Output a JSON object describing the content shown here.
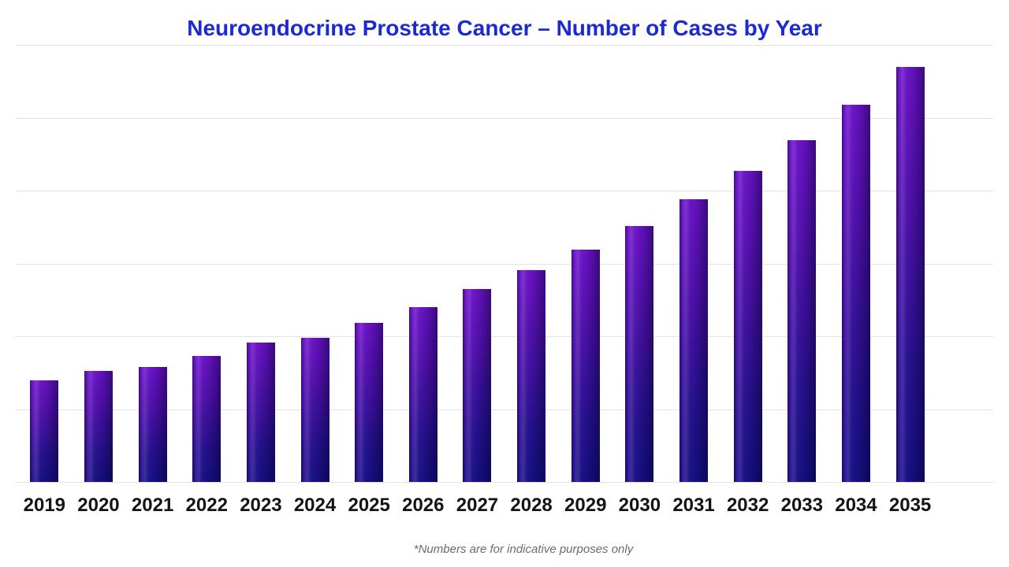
{
  "page": {
    "background": "#ffffff"
  },
  "chart_data": {
    "type": "bar",
    "title": "Neuroendocrine Prostate Cancer – Number of Cases by Year",
    "footnote": "*Numbers are for indicative purposes only",
    "categories": [
      "2019",
      "2020",
      "2021",
      "2022",
      "2023",
      "2024",
      "2025",
      "2026",
      "2027",
      "2028",
      "2029",
      "2030",
      "2031",
      "2032",
      "2033",
      "2034",
      "2035"
    ],
    "values": [
      139,
      152,
      158,
      173,
      191,
      198,
      218,
      240,
      265,
      291,
      319,
      351,
      388,
      427,
      469,
      518,
      570
    ],
    "xlabel": "",
    "ylabel": "",
    "ylim": [
      0,
      600
    ],
    "gridline_interval": 100,
    "grid": "horizontal-only",
    "y_axis_labels_visible": false,
    "legend": "none",
    "colors": {
      "title": "#1b2ad4",
      "bar_gradient_top": "#6c12c8",
      "bar_gradient_bottom": "#150f83",
      "gridline": "#e2e2e2",
      "axis_label": "#141414",
      "footnote": "#6a6a6a",
      "background": "#ffffff"
    }
  }
}
